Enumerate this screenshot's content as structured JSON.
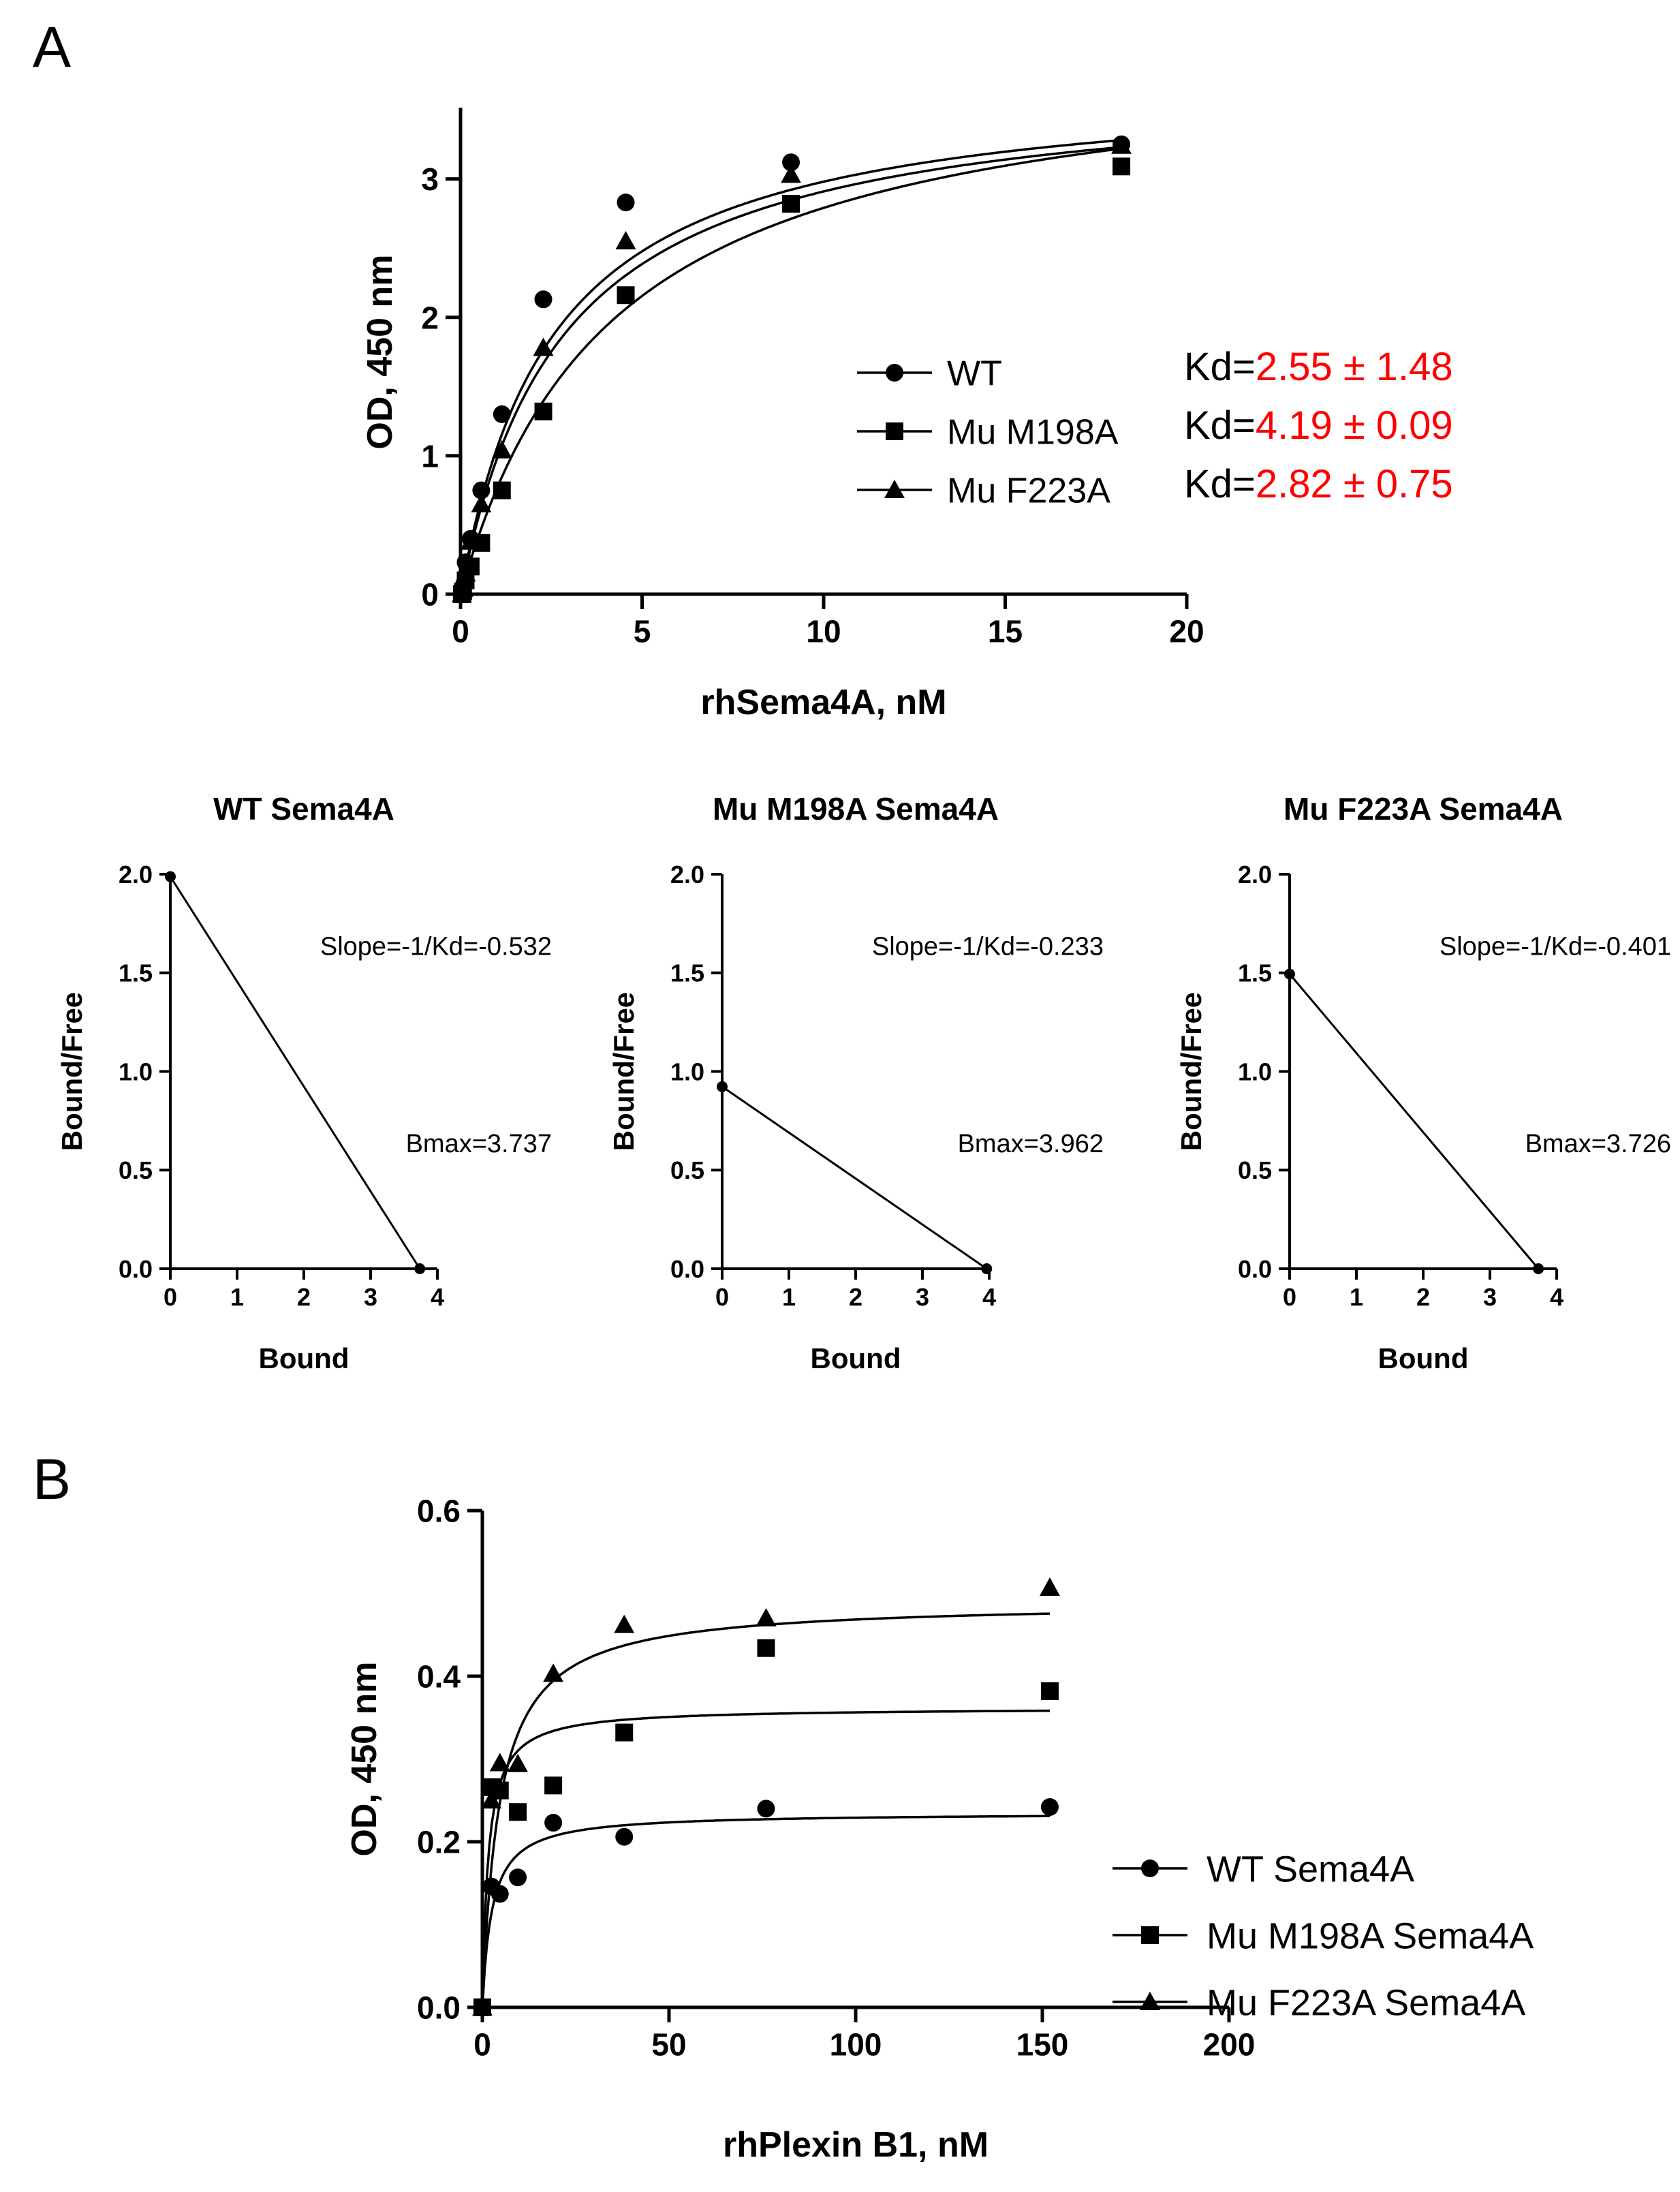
{
  "panel_labels": {
    "a": "A",
    "b": "B"
  },
  "colors": {
    "ink": "#000000",
    "kd_value": "#ff0000"
  },
  "chart_data": [
    {
      "id": "saturation_a",
      "type": "scatter",
      "title": "",
      "xlabel": "rhSema4A, nM",
      "ylabel": "OD, 450 nm",
      "xlim": [
        0,
        20
      ],
      "ylim": [
        0,
        3.5
      ],
      "xticks": [
        0,
        5,
        10,
        15,
        20
      ],
      "yticks": [
        0,
        1,
        2,
        3
      ],
      "xtick_labels": [
        "0",
        "5",
        "10",
        "15",
        "20"
      ],
      "ytick_labels": [
        "0",
        "1",
        "2",
        "3"
      ],
      "fit": "one-site hyperbola",
      "legend_position": "center-right",
      "series": [
        {
          "name": "WT",
          "marker": "circle",
          "bmax": 3.74,
          "kd": 2.55,
          "x": [
            0.035,
            0.07,
            0.14,
            0.28,
            0.57,
            1.14,
            2.28,
            4.55,
            9.1,
            18.2
          ],
          "y": [
            0.0,
            0.05,
            0.23,
            0.4,
            0.75,
            1.3,
            2.13,
            2.83,
            3.12,
            3.25
          ]
        },
        {
          "name": "Mu M198A",
          "marker": "square",
          "bmax": 3.96,
          "kd": 4.19,
          "x": [
            0.035,
            0.07,
            0.14,
            0.28,
            0.57,
            1.14,
            2.28,
            4.55,
            9.1,
            18.2
          ],
          "y": [
            0.0,
            0.02,
            0.1,
            0.2,
            0.37,
            0.75,
            1.32,
            2.16,
            2.82,
            3.09
          ]
        },
        {
          "name": "Mu F223A",
          "marker": "triangle",
          "bmax": 3.73,
          "kd": 2.82,
          "x": [
            0.035,
            0.07,
            0.14,
            0.28,
            0.57,
            1.14,
            2.28,
            4.55,
            9.1,
            18.2
          ],
          "y": [
            0.0,
            0.04,
            0.15,
            0.38,
            0.65,
            1.04,
            1.78,
            2.55,
            3.03,
            3.24
          ]
        }
      ],
      "annotations": [
        {
          "prefix": "Kd=",
          "value": "2.55 ± 1.48"
        },
        {
          "prefix": "Kd=",
          "value": "4.19 ± 0.09"
        },
        {
          "prefix": "Kd=",
          "value": "2.82 ± 0.75"
        }
      ]
    },
    {
      "id": "scatchard_wt",
      "type": "line",
      "title": "WT Sema4A",
      "xlabel": "Bound",
      "ylabel": "Bound/Free",
      "xlim": [
        0,
        4
      ],
      "ylim": [
        0,
        2.0
      ],
      "xticks": [
        0,
        1,
        2,
        3,
        4
      ],
      "yticks": [
        0,
        0.5,
        1.0,
        1.5,
        2.0
      ],
      "xtick_labels": [
        "0",
        "1",
        "2",
        "3",
        "4"
      ],
      "ytick_labels": [
        "0.0",
        "0.5",
        "1.0",
        "1.5",
        "2.0"
      ],
      "series": [
        {
          "name": "WT Sema4A",
          "x": [
            0,
            3.737
          ],
          "y": [
            1.988,
            0
          ]
        }
      ],
      "annotations": [
        "Slope=-1/Kd=-0.532",
        "Bmax=3.737"
      ]
    },
    {
      "id": "scatchard_m198a",
      "type": "line",
      "title": "Mu M198A Sema4A",
      "xlabel": "Bound",
      "ylabel": "Bound/Free",
      "xlim": [
        0,
        4
      ],
      "ylim": [
        0,
        2.0
      ],
      "xticks": [
        0,
        1,
        2,
        3,
        4
      ],
      "yticks": [
        0,
        0.5,
        1.0,
        1.5,
        2.0
      ],
      "xtick_labels": [
        "0",
        "1",
        "2",
        "3",
        "4"
      ],
      "ytick_labels": [
        "0.0",
        "0.5",
        "1.0",
        "1.5",
        "2.0"
      ],
      "series": [
        {
          "name": "Mu M198A Sema4A",
          "x": [
            0,
            3.962
          ],
          "y": [
            0.923,
            0
          ]
        }
      ],
      "annotations": [
        "Slope=-1/Kd=-0.233",
        "Bmax=3.962"
      ]
    },
    {
      "id": "scatchard_f223a",
      "type": "line",
      "title": "Mu F223A Sema4A",
      "xlabel": "Bound",
      "ylabel": "Bound/Free",
      "xlim": [
        0,
        4
      ],
      "ylim": [
        0,
        2.0
      ],
      "xticks": [
        0,
        1,
        2,
        3,
        4
      ],
      "yticks": [
        0,
        0.5,
        1.0,
        1.5,
        2.0
      ],
      "xtick_labels": [
        "0",
        "1",
        "2",
        "3",
        "4"
      ],
      "ytick_labels": [
        "0.0",
        "0.5",
        "1.0",
        "1.5",
        "2.0"
      ],
      "series": [
        {
          "name": "Mu F223A Sema4A",
          "x": [
            0,
            3.726
          ],
          "y": [
            1.494,
            0
          ]
        }
      ],
      "annotations": [
        "Slope=-1/Kd=-0.401",
        "Bmax=3.726"
      ]
    },
    {
      "id": "saturation_b",
      "type": "scatter",
      "title": "",
      "xlabel": "rhPlexin B1, nM",
      "ylabel": "OD, 450 nm",
      "xlim": [
        0,
        200
      ],
      "ylim": [
        0,
        0.6
      ],
      "xticks": [
        0,
        50,
        100,
        150,
        200
      ],
      "yticks": [
        0,
        0.2,
        0.4,
        0.6
      ],
      "xtick_labels": [
        "0",
        "50",
        "100",
        "150",
        "200"
      ],
      "ytick_labels": [
        "0.0",
        "0.2",
        "0.4",
        "0.6"
      ],
      "fit": "one-site hyperbola",
      "legend_position": "right",
      "series": [
        {
          "name": "WT Sema4A",
          "marker": "circle",
          "bmax": 0.235,
          "kd": 2.6,
          "x": [
            0,
            2.4,
            4.7,
            9.5,
            19,
            38,
            76,
            152
          ],
          "y": [
            0.0,
            0.146,
            0.137,
            0.157,
            0.223,
            0.206,
            0.24,
            0.242
          ]
        },
        {
          "name": "Mu M198A Sema4A",
          "marker": "square",
          "bmax": 0.362,
          "kd": 1.6,
          "x": [
            0,
            2.4,
            4.7,
            9.5,
            19,
            38,
            76,
            152
          ],
          "y": [
            0.0,
            0.266,
            0.262,
            0.236,
            0.268,
            0.332,
            0.434,
            0.382
          ]
        },
        {
          "name": "Mu F223A Sema4A",
          "marker": "triangle",
          "bmax": 0.49,
          "kd": 4.6,
          "x": [
            0,
            2.4,
            4.7,
            9.5,
            19,
            38,
            76,
            152
          ],
          "y": [
            0.0,
            0.25,
            0.295,
            0.294,
            0.403,
            0.462,
            0.47,
            0.507
          ]
        }
      ]
    }
  ]
}
